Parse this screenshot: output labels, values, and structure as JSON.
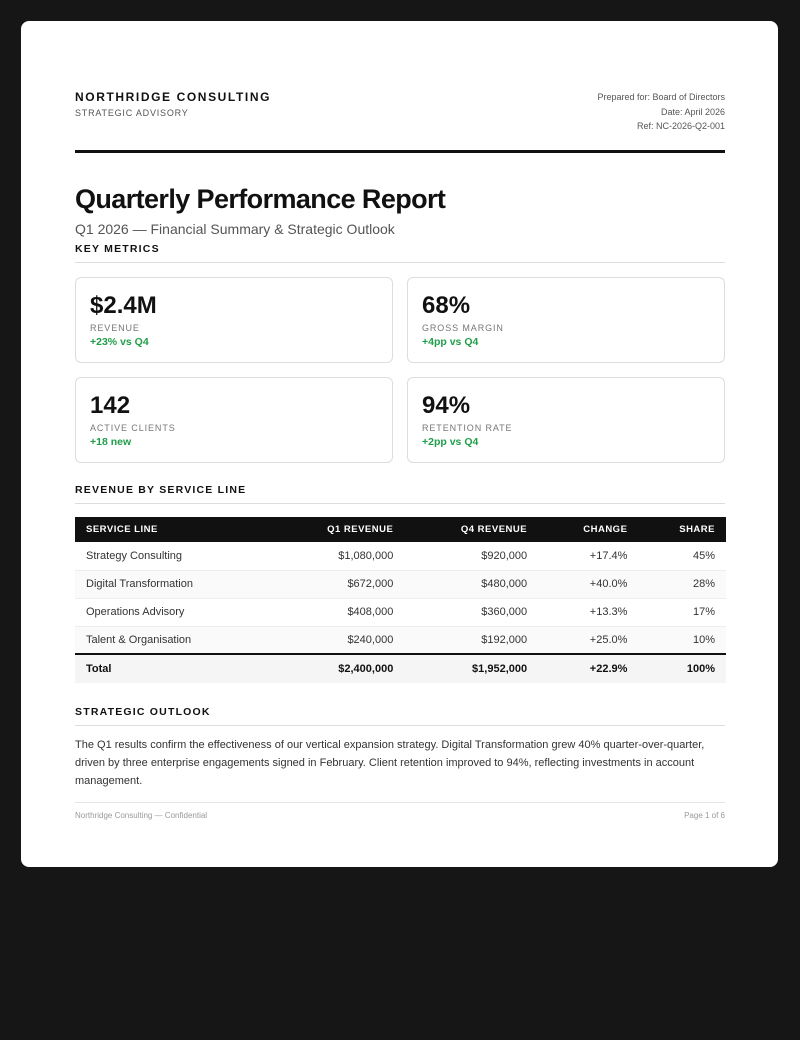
{
  "header": {
    "company": "NORTHRIDGE CONSULTING",
    "division": "STRATEGIC ADVISORY",
    "prepared_for": "Prepared for: Board of Directors",
    "date": "Date: April 2026",
    "ref": "Ref: NC-2026-Q2-001"
  },
  "title": "Quarterly Performance Report",
  "subtitle": "Q1 2026 — Financial Summary & Strategic Outlook",
  "metrics": {
    "heading": "KEY METRICS",
    "items": [
      {
        "value": "$2.4M",
        "label": "REVENUE",
        "delta": "+23% vs Q4"
      },
      {
        "value": "68%",
        "label": "GROSS MARGIN",
        "delta": "+4pp vs Q4"
      },
      {
        "value": "142",
        "label": "ACTIVE CLIENTS",
        "delta": "+18 new"
      },
      {
        "value": "94%",
        "label": "RETENTION RATE",
        "delta": "+2pp vs Q4"
      }
    ],
    "positive_color": "#1e9e48"
  },
  "revenue": {
    "heading": "REVENUE BY SERVICE LINE",
    "columns": [
      "SERVICE LINE",
      "Q1 REVENUE",
      "Q4 REVENUE",
      "CHANGE",
      "SHARE"
    ],
    "rows": [
      [
        "Strategy Consulting",
        "$1,080,000",
        "$920,000",
        "+17.4%",
        "45%"
      ],
      [
        "Digital Transformation",
        "$672,000",
        "$480,000",
        "+40.0%",
        "28%"
      ],
      [
        "Operations Advisory",
        "$408,000",
        "$360,000",
        "+13.3%",
        "17%"
      ],
      [
        "Talent & Organisation",
        "$240,000",
        "$192,000",
        "+25.0%",
        "10%"
      ]
    ],
    "total": [
      "Total",
      "$2,400,000",
      "$1,952,000",
      "+22.9%",
      "100%"
    ]
  },
  "outlook": {
    "heading": "STRATEGIC OUTLOOK",
    "text": "The Q1 results confirm the effectiveness of our vertical expansion strategy. Digital Transformation grew 40% quarter-over-quarter, driven by three enterprise engagements signed in February. Client retention improved to 94%, reflecting investments in account management."
  },
  "footer": {
    "left": "Northridge Consulting — Confidential",
    "right": "Page 1 of 6"
  }
}
